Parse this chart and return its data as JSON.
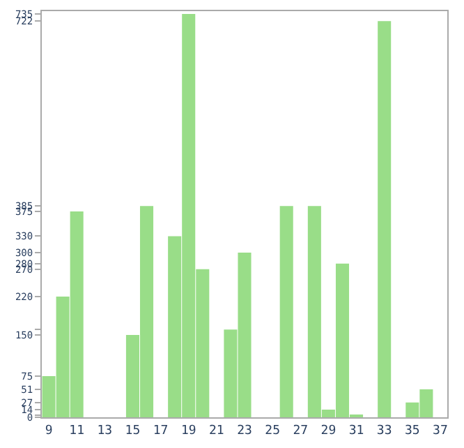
{
  "chart_data": {
    "type": "bar",
    "x": [
      9,
      10,
      11,
      12,
      13,
      14,
      15,
      16,
      17,
      18,
      19,
      20,
      21,
      22,
      23,
      24,
      25,
      26,
      27,
      28,
      29,
      30,
      31,
      32,
      33,
      34,
      35,
      36
    ],
    "values": [
      75,
      220,
      375,
      0,
      0,
      0,
      150,
      385,
      null,
      330,
      735,
      270,
      null,
      160,
      300,
      0,
      0,
      385,
      null,
      385,
      14,
      280,
      4,
      null,
      722,
      null,
      27,
      51
    ],
    "color": "#99dd88",
    "xlim": [
      8.5,
      37.5
    ],
    "xticks": [
      9,
      11,
      13,
      15,
      17,
      19,
      21,
      23,
      25,
      27,
      29,
      31,
      33,
      35,
      37
    ],
    "ylim": [
      0,
      740
    ],
    "yticks": [
      0,
      {
        "value": 4,
        "label": null
      },
      14,
      27,
      51,
      75,
      150,
      {
        "value": 160,
        "label": null
      },
      220,
      270,
      280,
      300,
      330,
      375,
      385,
      722,
      735
    ]
  }
}
